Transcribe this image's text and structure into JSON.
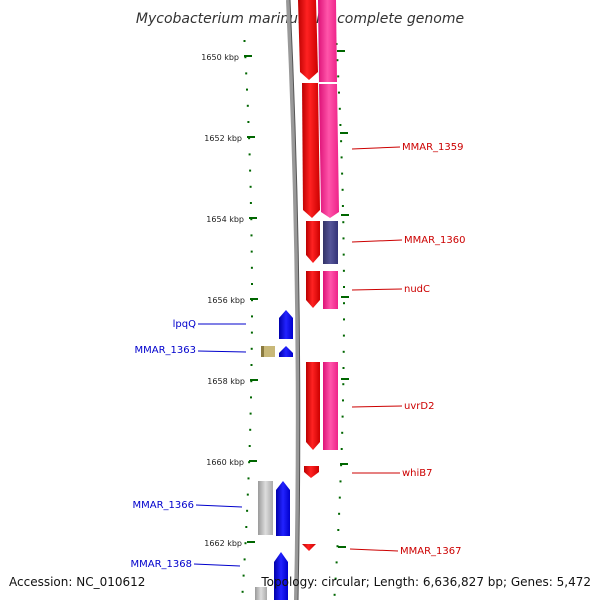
{
  "title": "Mycobacterium marinum M, complete genome",
  "footer": {
    "accession": "Accession: NC_010612",
    "topology": "Topology: circular; Length: 6,636,827 bp; Genes: 5,472"
  },
  "scale": {
    "unit": "kbp",
    "ticks": [
      "1650 kbp",
      "1652 kbp",
      "1654 kbp",
      "1656 kbp",
      "1658 kbp",
      "1660 kbp",
      "1662 kbp"
    ]
  },
  "genes_right": [
    "MMAR_1359",
    "MMAR_1360",
    "nudC",
    "uvrD2",
    "whiB7",
    "MMAR_1367"
  ],
  "genes_left": [
    "lpqQ",
    "MMAR_1363",
    "MMAR_1366",
    "MMAR_1368"
  ],
  "colors": {
    "red_cds": "#ff0000",
    "pink_cds": "#ff3399",
    "blue_cds": "#0000ff",
    "navy_cds": "#444488",
    "tan_cds": "#c8b878",
    "gray_cds": "#bbbbbb",
    "backbone": "#888888",
    "tick_green": "#006600"
  }
}
